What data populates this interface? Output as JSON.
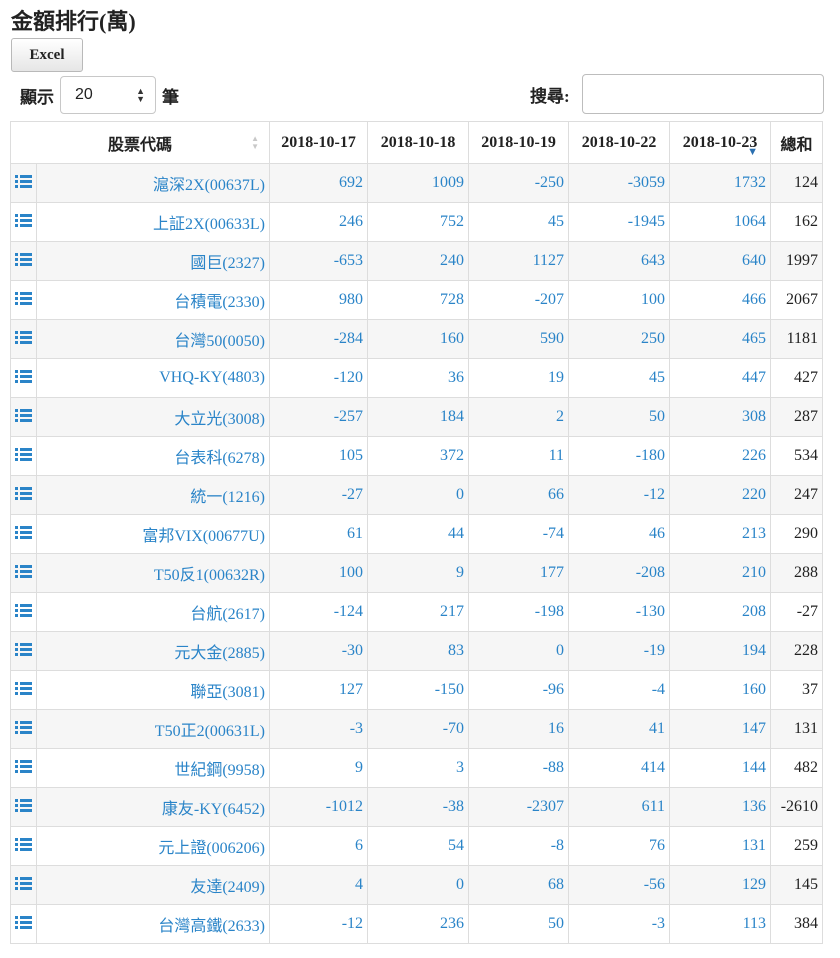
{
  "page": {
    "title": "金額排行(萬)",
    "excel_label": "Excel",
    "length": {
      "prefix": "顯示",
      "value": "20",
      "suffix": "筆"
    },
    "search": {
      "label": "搜尋:",
      "value": ""
    }
  },
  "table": {
    "headers": [
      "股票代碼",
      "2018-10-17",
      "2018-10-18",
      "2018-10-19",
      "2018-10-22",
      "2018-10-23",
      "總和"
    ],
    "rows": [
      {
        "name": "滬深2X(00637L)",
        "values": [
          "692",
          "1009",
          "-250",
          "-3059",
          "1732"
        ],
        "total": "124"
      },
      {
        "name": "上証2X(00633L)",
        "values": [
          "246",
          "752",
          "45",
          "-1945",
          "1064"
        ],
        "total": "162"
      },
      {
        "name": "國巨(2327)",
        "values": [
          "-653",
          "240",
          "1127",
          "643",
          "640"
        ],
        "total": "1997"
      },
      {
        "name": "台積電(2330)",
        "values": [
          "980",
          "728",
          "-207",
          "100",
          "466"
        ],
        "total": "2067"
      },
      {
        "name": "台灣50(0050)",
        "values": [
          "-284",
          "160",
          "590",
          "250",
          "465"
        ],
        "total": "1181"
      },
      {
        "name": "VHQ-KY(4803)",
        "values": [
          "-120",
          "36",
          "19",
          "45",
          "447"
        ],
        "total": "427"
      },
      {
        "name": "大立光(3008)",
        "values": [
          "-257",
          "184",
          "2",
          "50",
          "308"
        ],
        "total": "287"
      },
      {
        "name": "台表科(6278)",
        "values": [
          "105",
          "372",
          "11",
          "-180",
          "226"
        ],
        "total": "534"
      },
      {
        "name": "統一(1216)",
        "values": [
          "-27",
          "0",
          "66",
          "-12",
          "220"
        ],
        "total": "247"
      },
      {
        "name": "富邦VIX(00677U)",
        "values": [
          "61",
          "44",
          "-74",
          "46",
          "213"
        ],
        "total": "290"
      },
      {
        "name": "T50反1(00632R)",
        "values": [
          "100",
          "9",
          "177",
          "-208",
          "210"
        ],
        "total": "288"
      },
      {
        "name": "台航(2617)",
        "values": [
          "-124",
          "217",
          "-198",
          "-130",
          "208"
        ],
        "total": "-27"
      },
      {
        "name": "元大金(2885)",
        "values": [
          "-30",
          "83",
          "0",
          "-19",
          "194"
        ],
        "total": "228"
      },
      {
        "name": "聯亞(3081)",
        "values": [
          "127",
          "-150",
          "-96",
          "-4",
          "160"
        ],
        "total": "37"
      },
      {
        "name": "T50正2(00631L)",
        "values": [
          "-3",
          "-70",
          "16",
          "41",
          "147"
        ],
        "total": "131"
      },
      {
        "name": "世紀鋼(9958)",
        "values": [
          "9",
          "3",
          "-88",
          "414",
          "144"
        ],
        "total": "482"
      },
      {
        "name": "康友-KY(6452)",
        "values": [
          "-1012",
          "-38",
          "-2307",
          "611",
          "136"
        ],
        "total": "-2610"
      },
      {
        "name": "元上證(006206)",
        "values": [
          "6",
          "54",
          "-8",
          "76",
          "131"
        ],
        "total": "259"
      },
      {
        "name": "友達(2409)",
        "values": [
          "4",
          "0",
          "68",
          "-56",
          "129"
        ],
        "total": "145"
      },
      {
        "name": "台灣高鐵(2633)",
        "values": [
          "-12",
          "236",
          "50",
          "-3",
          "113"
        ],
        "total": "384"
      }
    ]
  },
  "icons": {
    "row_icon": "list-icon",
    "sort_icon": "sort-arrows-icon",
    "select_icon": "stepper-arrows-icon"
  },
  "colors": {
    "link": "#2a84c8",
    "stripe": "#f6f6f6",
    "border": "#dddddd",
    "icon": "#2a84c8"
  }
}
